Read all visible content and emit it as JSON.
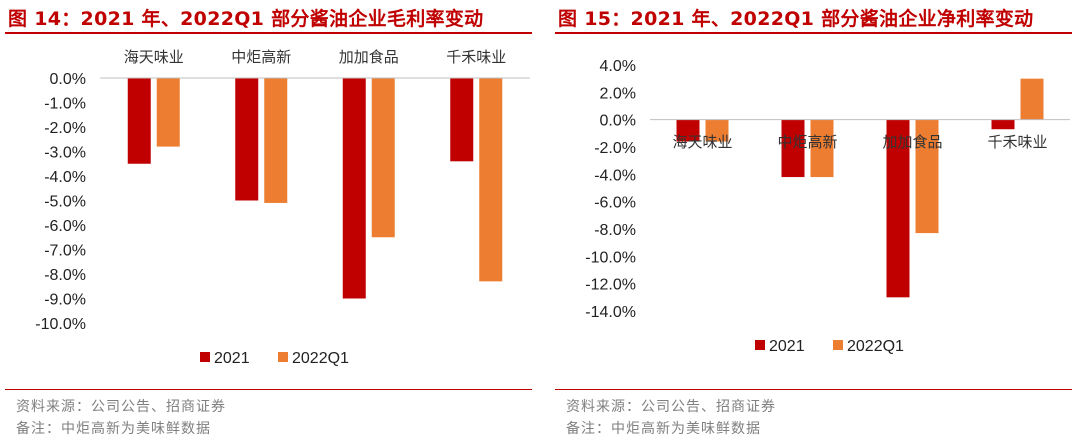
{
  "left": {
    "title": "图 14：2021 年、2022Q1 部分酱油企业毛利率变动",
    "source": "资料来源：公司公告、招商证券",
    "remark": "备注：中炬高新为美味鲜数据"
  },
  "right": {
    "title": "图 15：2021 年、2022Q1 部分酱油企业净利率变动",
    "source": "资料来源：公司公告、招商证券",
    "remark": "备注：中炬高新为美味鲜数据"
  },
  "colors": {
    "s2021": "#c00000",
    "s2022Q1": "#ed7d31",
    "title": "#c00000"
  },
  "chart_data": [
    {
      "type": "bar",
      "title": "图 14：2021 年、2022Q1 部分酱油企业毛利率变动",
      "categories": [
        "海天味业",
        "中炬高新",
        "加加食品",
        "千禾味业"
      ],
      "series": [
        {
          "name": "2021",
          "values": [
            -3.5,
            -5.0,
            -9.0,
            -3.4
          ]
        },
        {
          "name": "2022Q1",
          "values": [
            -2.8,
            -5.1,
            -6.5,
            -8.3
          ]
        }
      ],
      "yticks": [
        0,
        -1,
        -2,
        -3,
        -4,
        -5,
        -6,
        -7,
        -8,
        -9,
        -10
      ],
      "ytick_labels": [
        "0.0%",
        "-1.0%",
        "-2.0%",
        "-3.0%",
        "-4.0%",
        "-5.0%",
        "-6.0%",
        "-7.0%",
        "-8.0%",
        "-9.0%",
        "-10.0%"
      ],
      "ylim": [
        -10,
        0
      ],
      "xlabel": "",
      "ylabel": "",
      "legend": "bottom"
    },
    {
      "type": "bar",
      "title": "图 15：2021 年、2022Q1 部分酱油企业净利率变动",
      "categories": [
        "海天味业",
        "中炬高新",
        "加加食品",
        "千禾味业"
      ],
      "series": [
        {
          "name": "2021",
          "values": [
            -1.6,
            -4.2,
            -13.0,
            -0.7
          ]
        },
        {
          "name": "2022Q1",
          "values": [
            -1.6,
            -4.2,
            -8.3,
            3.0
          ]
        }
      ],
      "yticks": [
        4,
        2,
        0,
        -2,
        -4,
        -6,
        -8,
        -10,
        -12,
        -14
      ],
      "ytick_labels": [
        "4.0%",
        "2.0%",
        "0.0%",
        "-2.0%",
        "-4.0%",
        "-6.0%",
        "-8.0%",
        "-10.0%",
        "-12.0%",
        "-14.0%"
      ],
      "ylim": [
        -14,
        4
      ],
      "xlabel": "",
      "ylabel": "",
      "legend": "bottom"
    }
  ]
}
